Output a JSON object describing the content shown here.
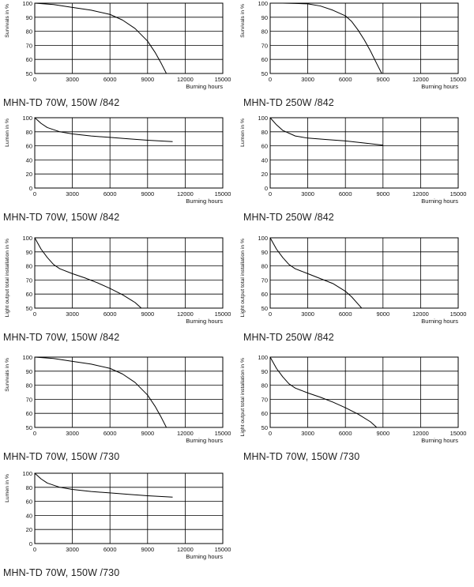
{
  "chart_data": [
    {
      "type": "line",
      "title": "MHN-TD 70W, 150W /842",
      "ylabel": "Survivals in %",
      "xlabel": "Burning hours",
      "xlim": [
        0,
        15000
      ],
      "ylim": [
        50,
        100
      ],
      "xticks": [
        "0",
        "3000",
        "6000",
        "9000",
        "12000",
        "15000"
      ],
      "yticks": [
        "50",
        "60",
        "70",
        "80",
        "90",
        "100"
      ],
      "grid": true,
      "series": [
        {
          "x": [
            0,
            1500,
            3000,
            4500,
            6000,
            7000,
            8000,
            9000,
            9600,
            10100,
            10500
          ],
          "y": [
            100,
            99,
            97,
            95,
            92,
            88,
            82,
            73,
            65,
            57,
            50
          ]
        }
      ]
    },
    {
      "type": "line",
      "title": "MHN-TD 250W /842",
      "ylabel": "Survivals in %",
      "xlabel": "Burning hours",
      "xlim": [
        0,
        15000
      ],
      "ylim": [
        50,
        100
      ],
      "xticks": [
        "0",
        "3000",
        "6000",
        "9000",
        "12000",
        "15000"
      ],
      "yticks": [
        "50",
        "60",
        "70",
        "80",
        "90",
        "100"
      ],
      "grid": true,
      "series": [
        {
          "x": [
            0,
            1000,
            2000,
            3000,
            4000,
            5000,
            6000,
            6500,
            7000,
            7500,
            8000,
            8500,
            8900
          ],
          "y": [
            100,
            100,
            99.8,
            99.5,
            98,
            95,
            91,
            87,
            81,
            74,
            66,
            57,
            50
          ]
        }
      ]
    },
    {
      "type": "line",
      "title": "MHN-TD 70W, 150W /842",
      "ylabel": "Lumen in %",
      "xlabel": "Burning hours",
      "xlim": [
        0,
        15000
      ],
      "ylim": [
        0,
        100
      ],
      "xticks": [
        "0",
        "3000",
        "6000",
        "9000",
        "12000",
        "15000"
      ],
      "yticks": [
        "0",
        "20",
        "40",
        "60",
        "80",
        "100"
      ],
      "grid": true,
      "series": [
        {
          "x": [
            0,
            500,
            1000,
            2000,
            3000,
            4500,
            6000,
            7500,
            9000,
            10000,
            11000
          ],
          "y": [
            100,
            92,
            86,
            80,
            77,
            74,
            72,
            70,
            68,
            67,
            66
          ]
        }
      ]
    },
    {
      "type": "line",
      "title": "MHN-TD 250W /842",
      "ylabel": "Lumen in %",
      "xlabel": "Burning hours",
      "xlim": [
        0,
        15000
      ],
      "ylim": [
        0,
        100
      ],
      "xticks": [
        "0",
        "3000",
        "6000",
        "9000",
        "12000",
        "15000"
      ],
      "yticks": [
        "0",
        "20",
        "40",
        "60",
        "80",
        "100"
      ],
      "grid": true,
      "series": [
        {
          "x": [
            0,
            500,
            1000,
            2000,
            3000,
            4500,
            6000,
            7500,
            9000
          ],
          "y": [
            100,
            90,
            82,
            74,
            71,
            69,
            67,
            64,
            61
          ]
        }
      ]
    },
    {
      "type": "line",
      "title": "MHN-TD 70W, 150W /842",
      "ylabel": "Light output total installation in %",
      "xlabel": "Burning hours",
      "xlim": [
        0,
        15000
      ],
      "ylim": [
        50,
        100
      ],
      "xticks": [
        "0",
        "3000",
        "6000",
        "9000",
        "12000",
        "15000"
      ],
      "yticks": [
        "50",
        "60",
        "70",
        "80",
        "90",
        "100"
      ],
      "grid": true,
      "series": [
        {
          "x": [
            0,
            500,
            1000,
            1500,
            2000,
            3000,
            4000,
            5000,
            6000,
            7000,
            8000,
            8500
          ],
          "y": [
            100,
            92,
            86,
            81,
            78,
            74.5,
            71.5,
            68,
            64,
            59.5,
            54,
            50
          ]
        }
      ]
    },
    {
      "type": "line",
      "title": "MHN-TD 250W /842",
      "ylabel": "Light output total installation in %",
      "xlabel": "Burning hours",
      "xlim": [
        0,
        15000
      ],
      "ylim": [
        50,
        100
      ],
      "xticks": [
        "0",
        "3000",
        "6000",
        "9000",
        "12000",
        "15000"
      ],
      "yticks": [
        "50",
        "60",
        "70",
        "80",
        "90",
        "100"
      ],
      "grid": true,
      "series": [
        {
          "x": [
            0,
            500,
            1000,
            1500,
            2000,
            3000,
            4000,
            5000,
            6000,
            6500,
            7000,
            7300
          ],
          "y": [
            100,
            92,
            86,
            81,
            78,
            74.5,
            71,
            67.5,
            62,
            58,
            53,
            50
          ]
        }
      ]
    },
    {
      "type": "line",
      "title": "MHN-TD 70W, 150W /730",
      "ylabel": "Survivals in %",
      "xlabel": "Burning hours",
      "xlim": [
        0,
        15000
      ],
      "ylim": [
        50,
        100
      ],
      "xticks": [
        "0",
        "3000",
        "6000",
        "9000",
        "12000",
        "15000"
      ],
      "yticks": [
        "50",
        "60",
        "70",
        "80",
        "90",
        "100"
      ],
      "grid": true,
      "series": [
        {
          "x": [
            0,
            1500,
            3000,
            4500,
            6000,
            7000,
            8000,
            9000,
            9600,
            10100,
            10500
          ],
          "y": [
            100,
            99,
            97,
            95,
            92,
            88,
            82,
            73,
            65,
            57,
            50
          ]
        }
      ]
    },
    {
      "type": "line",
      "title": "MHN-TD 70W, 150W /730",
      "ylabel": "Light output total installation in %",
      "xlabel": "Burning hours",
      "xlim": [
        0,
        15000
      ],
      "ylim": [
        50,
        100
      ],
      "xticks": [
        "0",
        "3000",
        "6000",
        "9000",
        "12000",
        "15000"
      ],
      "yticks": [
        "50",
        "60",
        "70",
        "80",
        "90",
        "100"
      ],
      "grid": true,
      "series": [
        {
          "x": [
            0,
            500,
            1000,
            1500,
            2000,
            3000,
            4000,
            5000,
            6000,
            7000,
            8000,
            8500
          ],
          "y": [
            100,
            92,
            86,
            81,
            78,
            74.5,
            71.5,
            68,
            64,
            59.5,
            54,
            50
          ]
        }
      ]
    },
    {
      "type": "line",
      "title": "MHN-TD 70W, 150W /730",
      "ylabel": "Lumen in %",
      "xlabel": "Burning hours",
      "xlim": [
        0,
        15000
      ],
      "ylim": [
        0,
        100
      ],
      "xticks": [
        "0",
        "3000",
        "6000",
        "9000",
        "12000",
        "15000"
      ],
      "yticks": [
        "0",
        "20",
        "40",
        "60",
        "80",
        "100"
      ],
      "grid": true,
      "series": [
        {
          "x": [
            0,
            500,
            1000,
            2000,
            3000,
            4500,
            6000,
            7500,
            9000,
            10000,
            11000
          ],
          "y": [
            100,
            92,
            86,
            80,
            77,
            74,
            72,
            70,
            68,
            67,
            66
          ]
        }
      ]
    }
  ]
}
